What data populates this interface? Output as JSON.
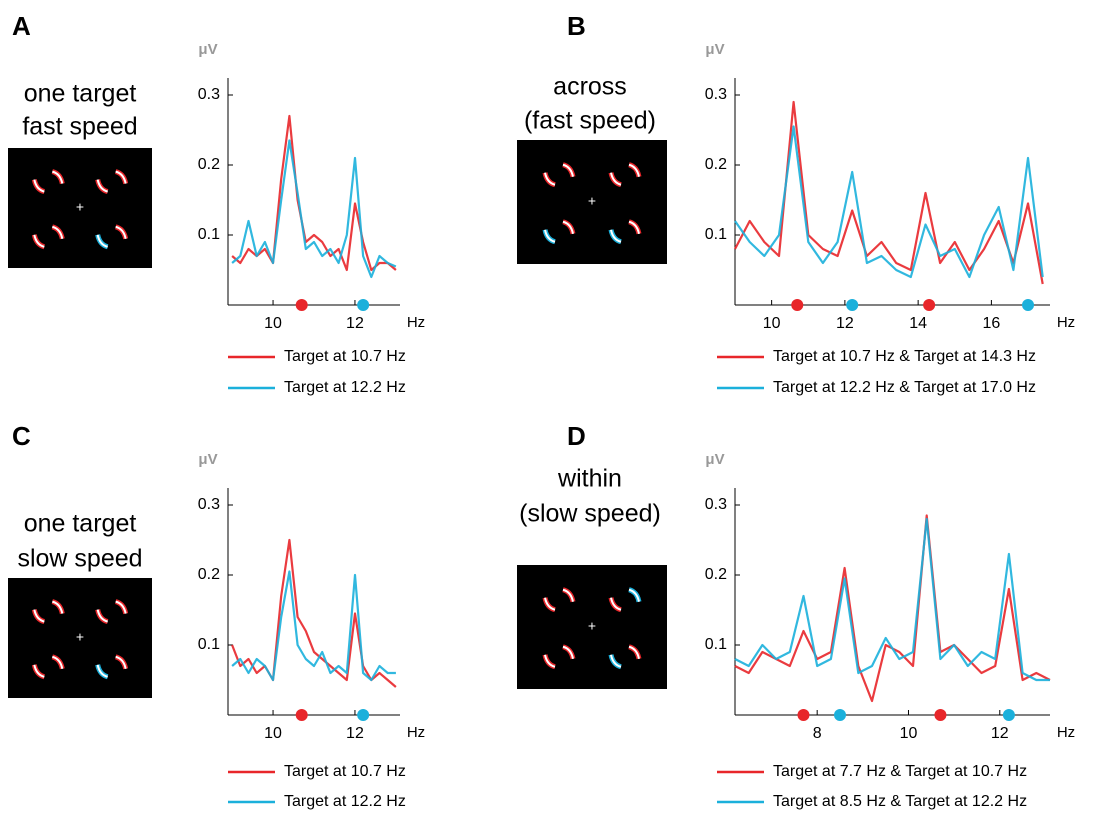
{
  "chart_data": [
    {
      "type": "line",
      "panel": "A",
      "stimulus_label": [
        "one target",
        "fast speed"
      ],
      "y_label": "μV",
      "x_label": "Hz",
      "x": [
        9,
        9.2,
        9.4,
        9.6,
        9.8,
        10,
        10.2,
        10.4,
        10.6,
        10.8,
        11,
        11.2,
        11.4,
        11.6,
        11.8,
        12,
        12.2,
        12.4,
        12.6,
        12.8,
        13
      ],
      "xlim": [
        8.9,
        13.1
      ],
      "xticks": [
        10,
        12
      ],
      "ylim": [
        0,
        0.31
      ],
      "yticks": [
        0.1,
        0.2,
        0.3
      ],
      "series": [
        {
          "name": "Target at 10.7 Hz",
          "color": "#e8262a",
          "markers": [
            10.7
          ],
          "values": [
            0.07,
            0.06,
            0.08,
            0.07,
            0.08,
            0.06,
            0.18,
            0.27,
            0.15,
            0.09,
            0.1,
            0.09,
            0.07,
            0.08,
            0.05,
            0.145,
            0.09,
            0.05,
            0.06,
            0.06,
            0.05
          ]
        },
        {
          "name": "Target at 12.2 Hz",
          "color": "#1bb0db",
          "markers": [
            12.2
          ],
          "values": [
            0.06,
            0.07,
            0.12,
            0.07,
            0.09,
            0.06,
            0.15,
            0.235,
            0.16,
            0.08,
            0.09,
            0.07,
            0.08,
            0.06,
            0.1,
            0.21,
            0.07,
            0.04,
            0.07,
            0.06,
            0.055
          ]
        }
      ]
    },
    {
      "type": "line",
      "panel": "B",
      "stimulus_label": [
        "across",
        "(fast speed)"
      ],
      "y_label": "μV",
      "x_label": "Hz",
      "x": [
        9,
        9.4,
        9.8,
        10.2,
        10.6,
        11,
        11.4,
        11.8,
        12.2,
        12.6,
        13,
        13.4,
        13.8,
        14.2,
        14.6,
        15,
        15.4,
        15.8,
        16.2,
        16.6,
        17,
        17.4
      ],
      "xlim": [
        9,
        17.6
      ],
      "xticks": [
        10,
        12,
        14,
        16
      ],
      "ylim": [
        0,
        0.31
      ],
      "yticks": [
        0.1,
        0.2,
        0.3
      ],
      "series": [
        {
          "name": "Target at 10.7 Hz & Target at 14.3 Hz",
          "color": "#e8262a",
          "markers": [
            10.7,
            14.3
          ],
          "values": [
            0.08,
            0.12,
            0.09,
            0.07,
            0.29,
            0.1,
            0.08,
            0.07,
            0.135,
            0.07,
            0.09,
            0.06,
            0.05,
            0.16,
            0.06,
            0.09,
            0.05,
            0.08,
            0.12,
            0.06,
            0.145,
            0.03
          ]
        },
        {
          "name": "Target at 12.2 Hz & Target at 17.0 Hz",
          "color": "#1bb0db",
          "markers": [
            12.2,
            17.0
          ],
          "values": [
            0.12,
            0.09,
            0.07,
            0.1,
            0.255,
            0.09,
            0.06,
            0.09,
            0.19,
            0.06,
            0.07,
            0.05,
            0.04,
            0.115,
            0.07,
            0.08,
            0.04,
            0.1,
            0.14,
            0.05,
            0.21,
            0.04
          ]
        }
      ]
    },
    {
      "type": "line",
      "panel": "C",
      "stimulus_label": [
        "one target",
        "slow speed"
      ],
      "y_label": "μV",
      "x_label": "Hz",
      "x": [
        9,
        9.2,
        9.4,
        9.6,
        9.8,
        10,
        10.2,
        10.4,
        10.6,
        10.8,
        11,
        11.2,
        11.4,
        11.6,
        11.8,
        12,
        12.2,
        12.4,
        12.6,
        12.8,
        13
      ],
      "xlim": [
        8.9,
        13.1
      ],
      "xticks": [
        10,
        12
      ],
      "ylim": [
        0,
        0.31
      ],
      "yticks": [
        0.1,
        0.2,
        0.3
      ],
      "series": [
        {
          "name": "Target at 10.7 Hz",
          "color": "#e8262a",
          "markers": [
            10.7
          ],
          "values": [
            0.1,
            0.07,
            0.08,
            0.06,
            0.07,
            0.05,
            0.17,
            0.25,
            0.14,
            0.12,
            0.09,
            0.08,
            0.07,
            0.06,
            0.05,
            0.145,
            0.07,
            0.05,
            0.06,
            0.05,
            0.04
          ]
        },
        {
          "name": "Target at 12.2 Hz",
          "color": "#1bb0db",
          "markers": [
            12.2
          ],
          "values": [
            0.07,
            0.08,
            0.06,
            0.08,
            0.07,
            0.05,
            0.14,
            0.205,
            0.1,
            0.08,
            0.07,
            0.09,
            0.06,
            0.07,
            0.06,
            0.2,
            0.06,
            0.05,
            0.07,
            0.06,
            0.06
          ]
        }
      ]
    },
    {
      "type": "line",
      "panel": "D",
      "stimulus_label": [
        "within",
        "(slow speed)"
      ],
      "y_label": "μV",
      "x_label": "Hz",
      "x": [
        6.2,
        6.5,
        6.8,
        7.1,
        7.4,
        7.7,
        8.0,
        8.3,
        8.6,
        8.9,
        9.2,
        9.5,
        9.8,
        10.1,
        10.4,
        10.7,
        11.0,
        11.3,
        11.6,
        11.9,
        12.2,
        12.5,
        12.8,
        13.1
      ],
      "xlim": [
        6.2,
        13.1
      ],
      "xticks": [
        8,
        10,
        12
      ],
      "ylim": [
        0,
        0.31
      ],
      "yticks": [
        0.1,
        0.2,
        0.3
      ],
      "series": [
        {
          "name": "Target at 7.7 Hz & Target at 10.7 Hz",
          "color": "#e8262a",
          "markers": [
            7.7,
            10.7
          ],
          "values": [
            0.07,
            0.06,
            0.09,
            0.08,
            0.07,
            0.12,
            0.08,
            0.09,
            0.21,
            0.07,
            0.02,
            0.1,
            0.09,
            0.07,
            0.285,
            0.09,
            0.1,
            0.08,
            0.06,
            0.07,
            0.18,
            0.05,
            0.06,
            0.05
          ]
        },
        {
          "name": "Target at 8.5 Hz & Target at 12.2 Hz",
          "color": "#1bb0db",
          "markers": [
            8.5,
            12.2
          ],
          "values": [
            0.08,
            0.07,
            0.1,
            0.08,
            0.09,
            0.17,
            0.07,
            0.08,
            0.195,
            0.06,
            0.07,
            0.11,
            0.08,
            0.09,
            0.28,
            0.08,
            0.1,
            0.07,
            0.09,
            0.08,
            0.23,
            0.06,
            0.05,
            0.05
          ]
        }
      ]
    }
  ]
}
